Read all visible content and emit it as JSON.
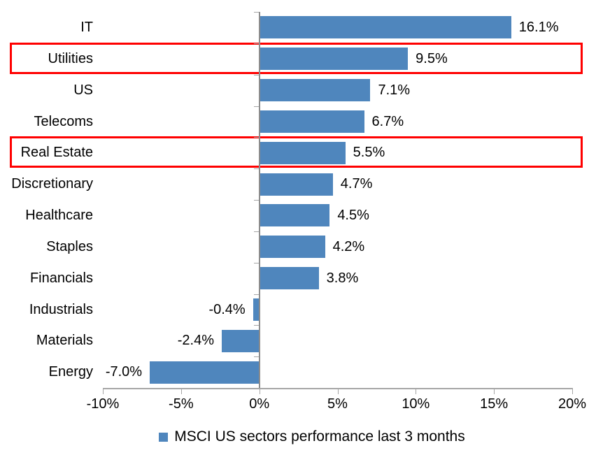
{
  "chart_data": {
    "type": "bar",
    "orientation": "horizontal",
    "title": "",
    "categories": [
      "IT",
      "Utilities",
      "US",
      "Telecoms",
      "Real Estate",
      "Discretionary",
      "Healthcare",
      "Staples",
      "Financials",
      "Industrials",
      "Materials",
      "Energy"
    ],
    "values": [
      16.1,
      9.5,
      7.1,
      6.7,
      5.5,
      4.7,
      4.5,
      4.2,
      3.8,
      -0.4,
      -2.4,
      -7.0
    ],
    "data_labels": [
      "16.1%",
      "9.5%",
      "7.1%",
      "6.7%",
      "5.5%",
      "4.7%",
      "4.5%",
      "4.2%",
      "3.8%",
      "-0.4%",
      "-2.4%",
      "-7.0%"
    ],
    "xlim": [
      -10,
      20
    ],
    "x_ticks": [
      {
        "value": -10,
        "label": "-10%"
      },
      {
        "value": -5,
        "label": "-5%"
      },
      {
        "value": 0,
        "label": "0%"
      },
      {
        "value": 5,
        "label": "5%"
      },
      {
        "value": 10,
        "label": "10%"
      },
      {
        "value": 15,
        "label": "15%"
      },
      {
        "value": 20,
        "label": "20%"
      }
    ],
    "grid": false,
    "legend": "MSCI US sectors performance last 3 months",
    "legend_position": "bottom",
    "highlighted_categories": [
      "Utilities",
      "Real Estate"
    ],
    "colors": {
      "bar": "#4f86bd",
      "highlight_border": "#ff0000",
      "axis": "#a6a6a6",
      "y_axis": "#8c8c8c",
      "text": "#000000"
    }
  }
}
